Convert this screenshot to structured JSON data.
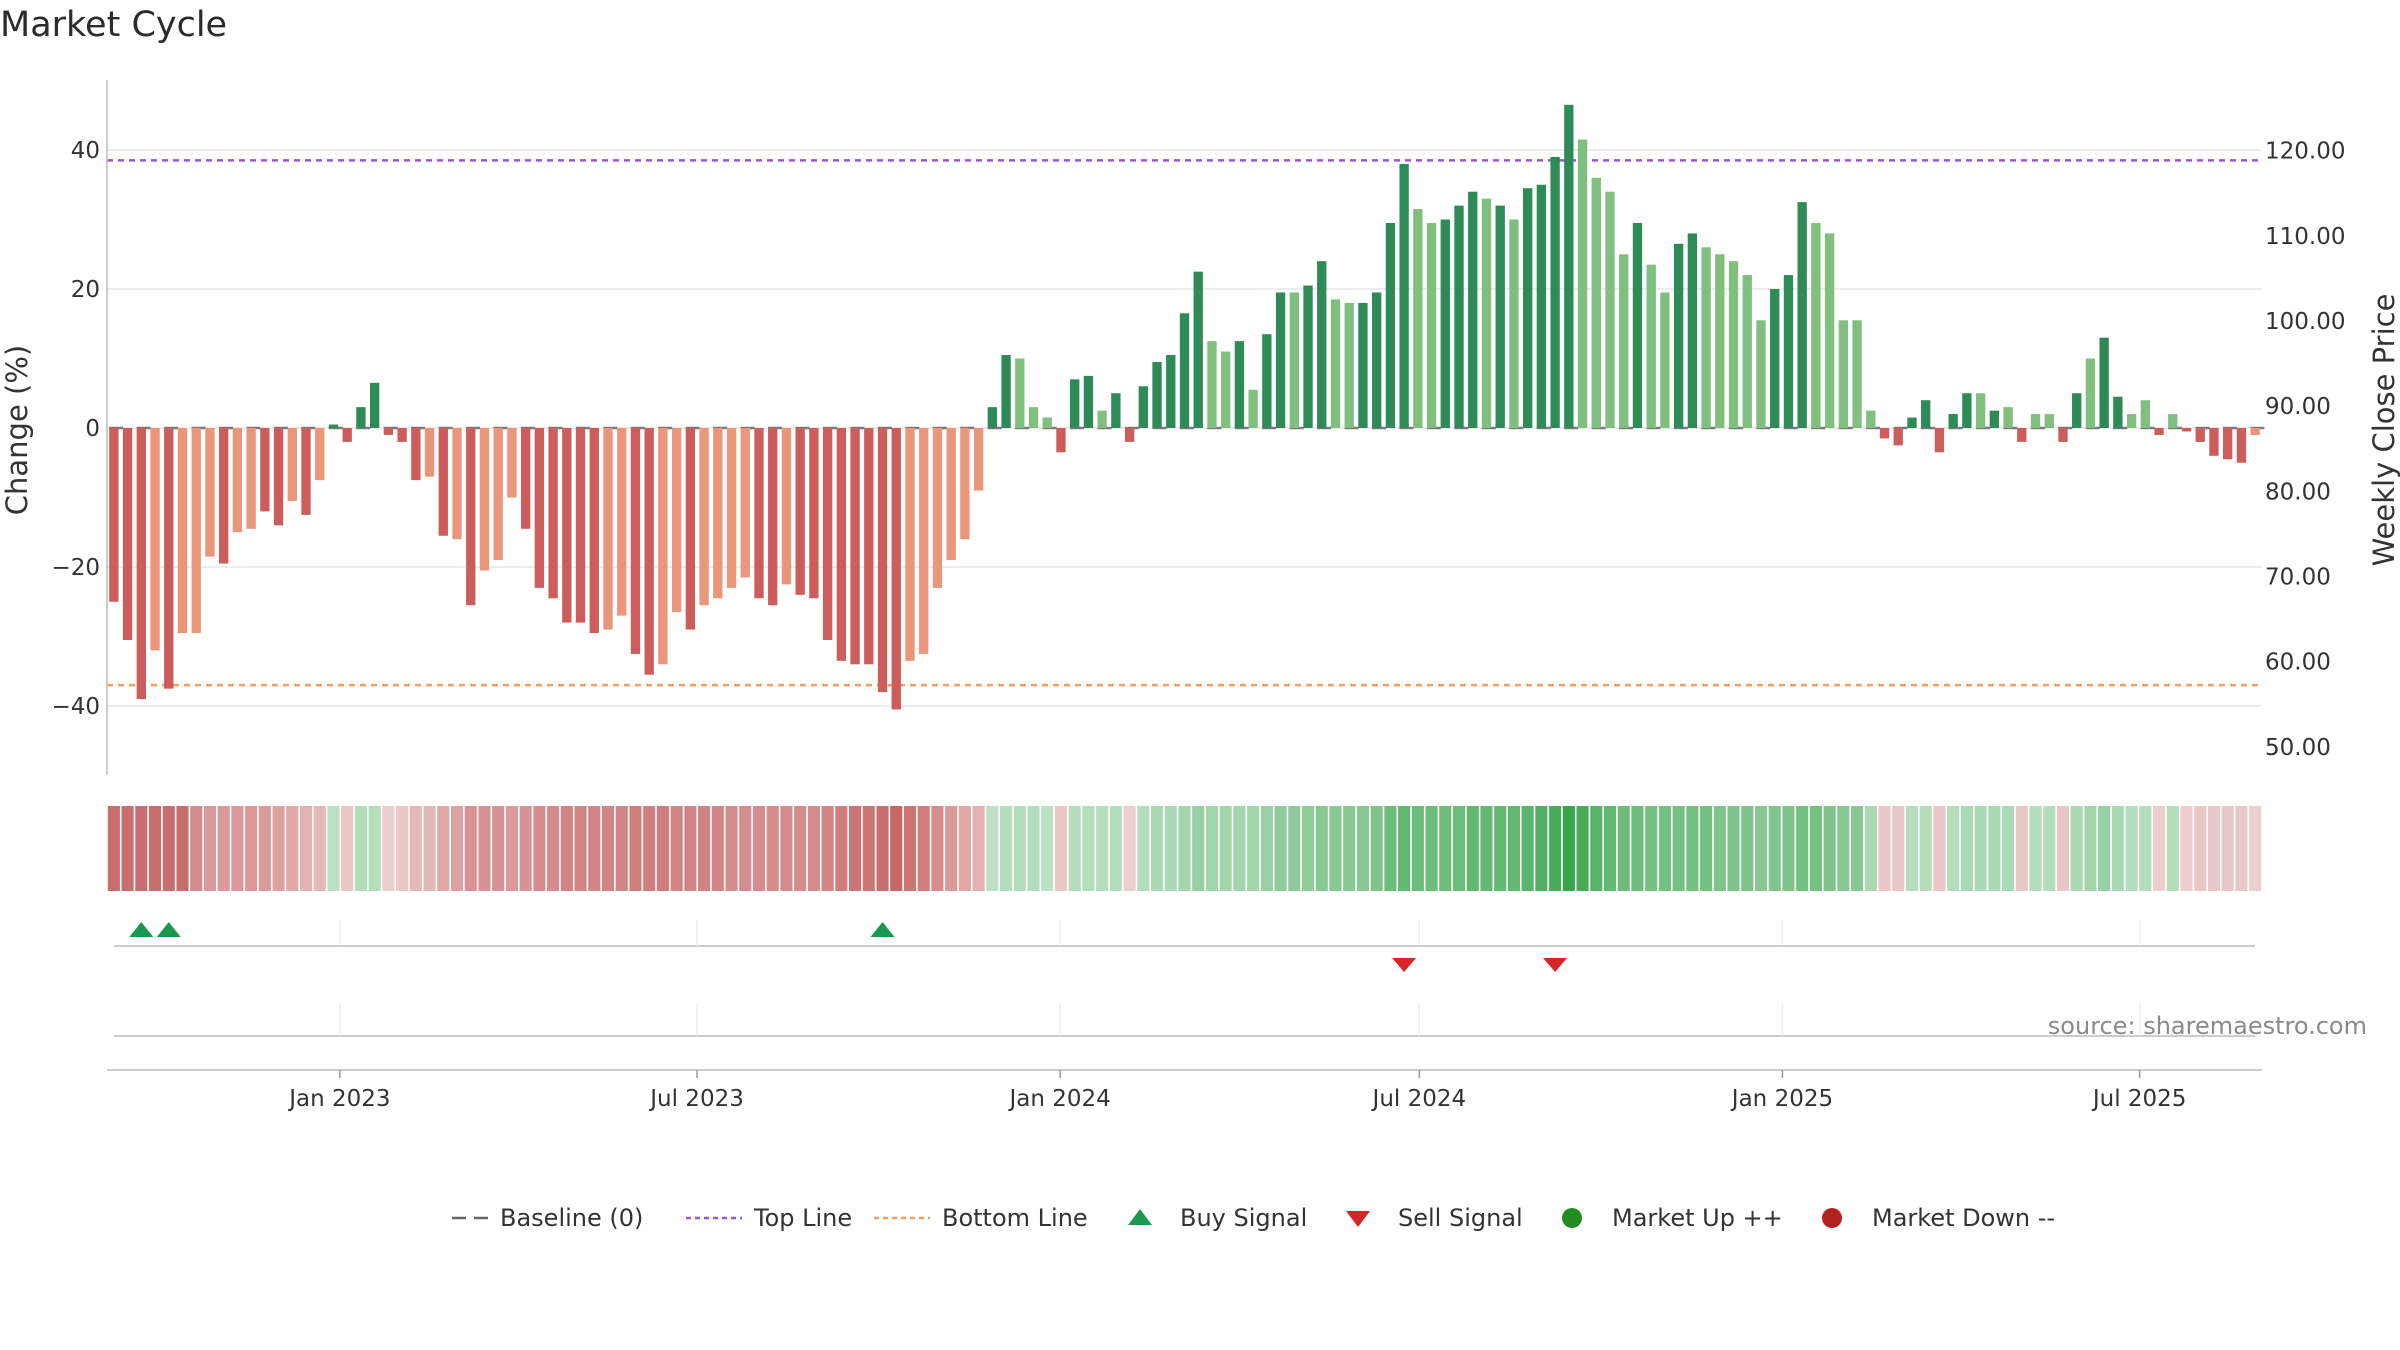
{
  "title": "Market Cycle",
  "source": "source: sharemaestro.com",
  "colors": {
    "strong_up": "#2e8b57",
    "weak_up": "#80bf80",
    "strong_down": "#cd5c5c",
    "weak_down": "#e9967a",
    "top_line": "#9c58c9",
    "bottom_line": "#f0a060",
    "baseline": "#666666",
    "buy": "#1a9850",
    "sell": "#d62728",
    "market_up": "#228b22",
    "market_down": "#b22222",
    "grid": "#e6e6e6"
  },
  "chart_data": {
    "type": "bar",
    "ylabel_left": "Change (%)",
    "ylabel_right": "Weekly Close Price",
    "left_ticks": [
      "40",
      "20",
      "0",
      "−20",
      "−40"
    ],
    "right_ticks": [
      "120.00",
      "110.00",
      "100.00",
      "90.00",
      "80.00",
      "70.00",
      "60.00",
      "50.00"
    ],
    "ylim_left": [
      -50,
      50
    ],
    "ylim_right": [
      46.7,
      128.3
    ],
    "x_tick_labels": [
      "Jan 2023",
      "Jul 2023",
      "Jan 2024",
      "Jul 2024",
      "Jan 2025",
      "Jul 2025"
    ],
    "x_range": [
      "2022-09-05",
      "2025-09-01"
    ],
    "top_line": 38.5,
    "bottom_line": -37,
    "values": [
      -25,
      -30.5,
      -39,
      -32,
      -37.5,
      -29.5,
      -29.5,
      -18.5,
      -19.5,
      -15,
      -14.5,
      -12,
      -14,
      -10.5,
      -12.5,
      -7.5,
      0.5,
      -2,
      3,
      6.5,
      -1,
      -2,
      -7.5,
      -7,
      -15.5,
      -16,
      -25.5,
      -20.5,
      -19,
      -10,
      -14.5,
      -23,
      -24.5,
      -28,
      -28,
      -29.5,
      -29,
      -27,
      -32.5,
      -35.5,
      -34,
      -26.5,
      -29,
      -25.5,
      -24.5,
      -23,
      -21.5,
      -24.5,
      -25.5,
      -22.5,
      -24,
      -24.5,
      -30.5,
      -33.5,
      -34,
      -34,
      -38,
      -40.5,
      -33.5,
      -32.5,
      -23,
      -19,
      -16,
      -9,
      3,
      10.5,
      10,
      3,
      1.5,
      -3.5,
      7,
      7.5,
      2.5,
      5,
      -2,
      6,
      9.5,
      10.5,
      16.5,
      22.5,
      12.5,
      11,
      12.5,
      5.5,
      13.5,
      19.5,
      19.5,
      20.5,
      24,
      18.5,
      18,
      18,
      19.5,
      29.5,
      38,
      31.5,
      29.5,
      30,
      32,
      34,
      33,
      32,
      30,
      34.5,
      35,
      39,
      46.5,
      41.5,
      36,
      34,
      25,
      29.5,
      23.5,
      19.5,
      26.5,
      28,
      26,
      25,
      24,
      22,
      15.5,
      20,
      22,
      32.5,
      29.5,
      28,
      15.5,
      15.5,
      2.5,
      -1.5,
      -2.5,
      1.5,
      4,
      -3.5,
      2,
      5,
      5,
      2.5,
      3,
      -2,
      2,
      2,
      -2,
      5,
      10,
      13,
      4.5,
      2,
      4,
      -1,
      2,
      -0.5,
      -2,
      -4,
      -4.5,
      -5,
      -1
    ],
    "strength": [
      2,
      2,
      2,
      1,
      2,
      1,
      1,
      1,
      2,
      1,
      1,
      2,
      2,
      1,
      2,
      1,
      2,
      2,
      2,
      2,
      2,
      2,
      2,
      1,
      2,
      1,
      2,
      1,
      1,
      1,
      2,
      2,
      2,
      2,
      2,
      2,
      1,
      1,
      2,
      2,
      1,
      1,
      2,
      1,
      1,
      1,
      1,
      2,
      2,
      1,
      2,
      2,
      2,
      2,
      2,
      2,
      2,
      2,
      1,
      1,
      1,
      1,
      1,
      1,
      2,
      2,
      1,
      1,
      1,
      2,
      2,
      2,
      1,
      2,
      2,
      2,
      2,
      2,
      2,
      2,
      1,
      1,
      2,
      1,
      2,
      2,
      1,
      2,
      2,
      1,
      1,
      2,
      2,
      2,
      2,
      1,
      1,
      2,
      2,
      2,
      1,
      2,
      1,
      2,
      2,
      2,
      2,
      1,
      1,
      1,
      1,
      2,
      1,
      1,
      2,
      2,
      1,
      1,
      1,
      1,
      1,
      2,
      2,
      2,
      1,
      1,
      1,
      1,
      1,
      2,
      2,
      2,
      2,
      2,
      2,
      2,
      1,
      2,
      1,
      2,
      1,
      1,
      2,
      2,
      1,
      2,
      2,
      1,
      1,
      2,
      1,
      2,
      2,
      2,
      2,
      2,
      1
    ],
    "heat_strip": [
      -0.8,
      -0.8,
      -0.8,
      -0.8,
      -0.8,
      -0.8,
      -0.6,
      -0.5,
      -0.5,
      -0.5,
      -0.5,
      -0.5,
      -0.45,
      -0.4,
      -0.35,
      -0.3,
      0.2,
      -0.2,
      0.25,
      0.25,
      -0.15,
      -0.2,
      -0.3,
      -0.3,
      -0.4,
      -0.45,
      -0.55,
      -0.55,
      -0.55,
      -0.5,
      -0.55,
      -0.6,
      -0.6,
      -0.65,
      -0.65,
      -0.65,
      -0.65,
      -0.65,
      -0.7,
      -0.7,
      -0.7,
      -0.65,
      -0.65,
      -0.65,
      -0.65,
      -0.6,
      -0.6,
      -0.6,
      -0.6,
      -0.6,
      -0.6,
      -0.6,
      -0.65,
      -0.7,
      -0.75,
      -0.75,
      -0.8,
      -0.85,
      -0.75,
      -0.7,
      -0.6,
      -0.5,
      -0.4,
      -0.35,
      0.2,
      0.25,
      0.25,
      0.25,
      0.2,
      -0.2,
      0.25,
      0.25,
      0.25,
      0.25,
      -0.15,
      0.25,
      0.3,
      0.3,
      0.35,
      0.4,
      0.35,
      0.35,
      0.35,
      0.35,
      0.4,
      0.45,
      0.45,
      0.45,
      0.5,
      0.5,
      0.5,
      0.5,
      0.55,
      0.65,
      0.7,
      0.65,
      0.65,
      0.65,
      0.65,
      0.7,
      0.7,
      0.7,
      0.7,
      0.75,
      0.8,
      0.85,
      0.95,
      0.85,
      0.75,
      0.7,
      0.65,
      0.65,
      0.6,
      0.6,
      0.6,
      0.6,
      0.6,
      0.55,
      0.55,
      0.55,
      0.5,
      0.55,
      0.55,
      0.6,
      0.6,
      0.55,
      0.5,
      0.5,
      0.3,
      -0.2,
      -0.2,
      0.25,
      0.25,
      -0.2,
      0.25,
      0.3,
      0.3,
      0.3,
      0.3,
      -0.2,
      0.25,
      0.25,
      -0.2,
      0.3,
      0.35,
      0.4,
      0.3,
      0.25,
      0.25,
      -0.15,
      0.25,
      -0.15,
      -0.2,
      -0.2,
      -0.2,
      -0.2,
      -0.15
    ],
    "buy_signals": [
      2,
      4,
      56
    ],
    "sell_signals": [
      94,
      105
    ],
    "market_up": [],
    "market_down": [],
    "legend": [
      {
        "label": "Baseline (0)",
        "symbol": "dash"
      },
      {
        "label": "Top Line",
        "symbol": "dot-purple"
      },
      {
        "label": "Bottom Line",
        "symbol": "dot-orange"
      },
      {
        "label": "Buy Signal",
        "symbol": "triangle-up"
      },
      {
        "label": "Sell Signal",
        "symbol": "triangle-down"
      },
      {
        "label": "Market Up ++",
        "symbol": "circle-green"
      },
      {
        "label": "Market Down --",
        "symbol": "circle-red"
      }
    ]
  }
}
